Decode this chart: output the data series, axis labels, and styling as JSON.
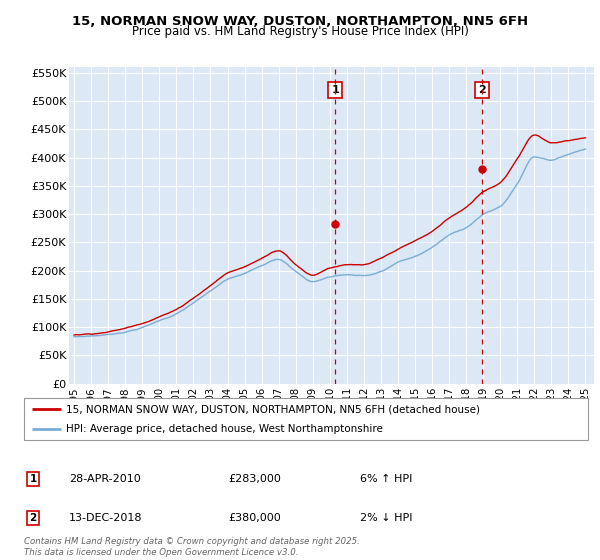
{
  "title": "15, NORMAN SNOW WAY, DUSTON, NORTHAMPTON, NN5 6FH",
  "subtitle": "Price paid vs. HM Land Registry's House Price Index (HPI)",
  "ylim": [
    0,
    560000
  ],
  "yticks": [
    0,
    50000,
    100000,
    150000,
    200000,
    250000,
    300000,
    350000,
    400000,
    450000,
    500000,
    550000
  ],
  "ytick_labels": [
    "£0",
    "£50K",
    "£100K",
    "£150K",
    "£200K",
    "£250K",
    "£300K",
    "£350K",
    "£400K",
    "£450K",
    "£500K",
    "£550K"
  ],
  "xlim_start": 1994.7,
  "xlim_end": 2025.5,
  "xticks": [
    1995,
    1996,
    1997,
    1998,
    1999,
    2000,
    2001,
    2002,
    2003,
    2004,
    2005,
    2006,
    2007,
    2008,
    2009,
    2010,
    2011,
    2012,
    2013,
    2014,
    2015,
    2016,
    2017,
    2018,
    2019,
    2020,
    2021,
    2022,
    2023,
    2024,
    2025
  ],
  "line1_color": "#cc0000",
  "line2_color": "#7aadd4",
  "fill_color": "#d6e8f5",
  "vline1_x": 2010.32,
  "vline2_x": 2018.95,
  "vline_color": "#cc0000",
  "legend_line1": "15, NORMAN SNOW WAY, DUSTON, NORTHAMPTON, NN5 6FH (detached house)",
  "legend_line2": "HPI: Average price, detached house, West Northamptonshire",
  "annotation1_num": "1",
  "annotation1_date": "28-APR-2010",
  "annotation1_price": "£283,000",
  "annotation1_hpi": "6% ↑ HPI",
  "annotation2_num": "2",
  "annotation2_date": "13-DEC-2018",
  "annotation2_price": "£380,000",
  "annotation2_hpi": "2% ↓ HPI",
  "footnote": "Contains HM Land Registry data © Crown copyright and database right 2025.\nThis data is licensed under the Open Government Licence v3.0.",
  "dot1_x": 2010.32,
  "dot1_y": 283000,
  "dot2_x": 2018.95,
  "dot2_y": 380000,
  "hpi_base_values": [
    83000,
    84500,
    87000,
    92000,
    100000,
    112000,
    124000,
    143000,
    163000,
    183000,
    193000,
    207000,
    220000,
    198000,
    180000,
    188000,
    192000,
    191000,
    198000,
    214000,
    224000,
    240000,
    261000,
    275000,
    298000,
    312000,
    352000,
    400000,
    395000,
    405000,
    415000
  ],
  "prop_base_values": [
    86000,
    88000,
    92000,
    98000,
    107000,
    120000,
    132000,
    153000,
    175000,
    197000,
    208000,
    223000,
    238000,
    213000,
    195000,
    208000,
    213000,
    212000,
    222000,
    238000,
    252000,
    268000,
    292000,
    310000,
    338000,
    355000,
    398000,
    440000,
    425000,
    430000,
    435000
  ]
}
